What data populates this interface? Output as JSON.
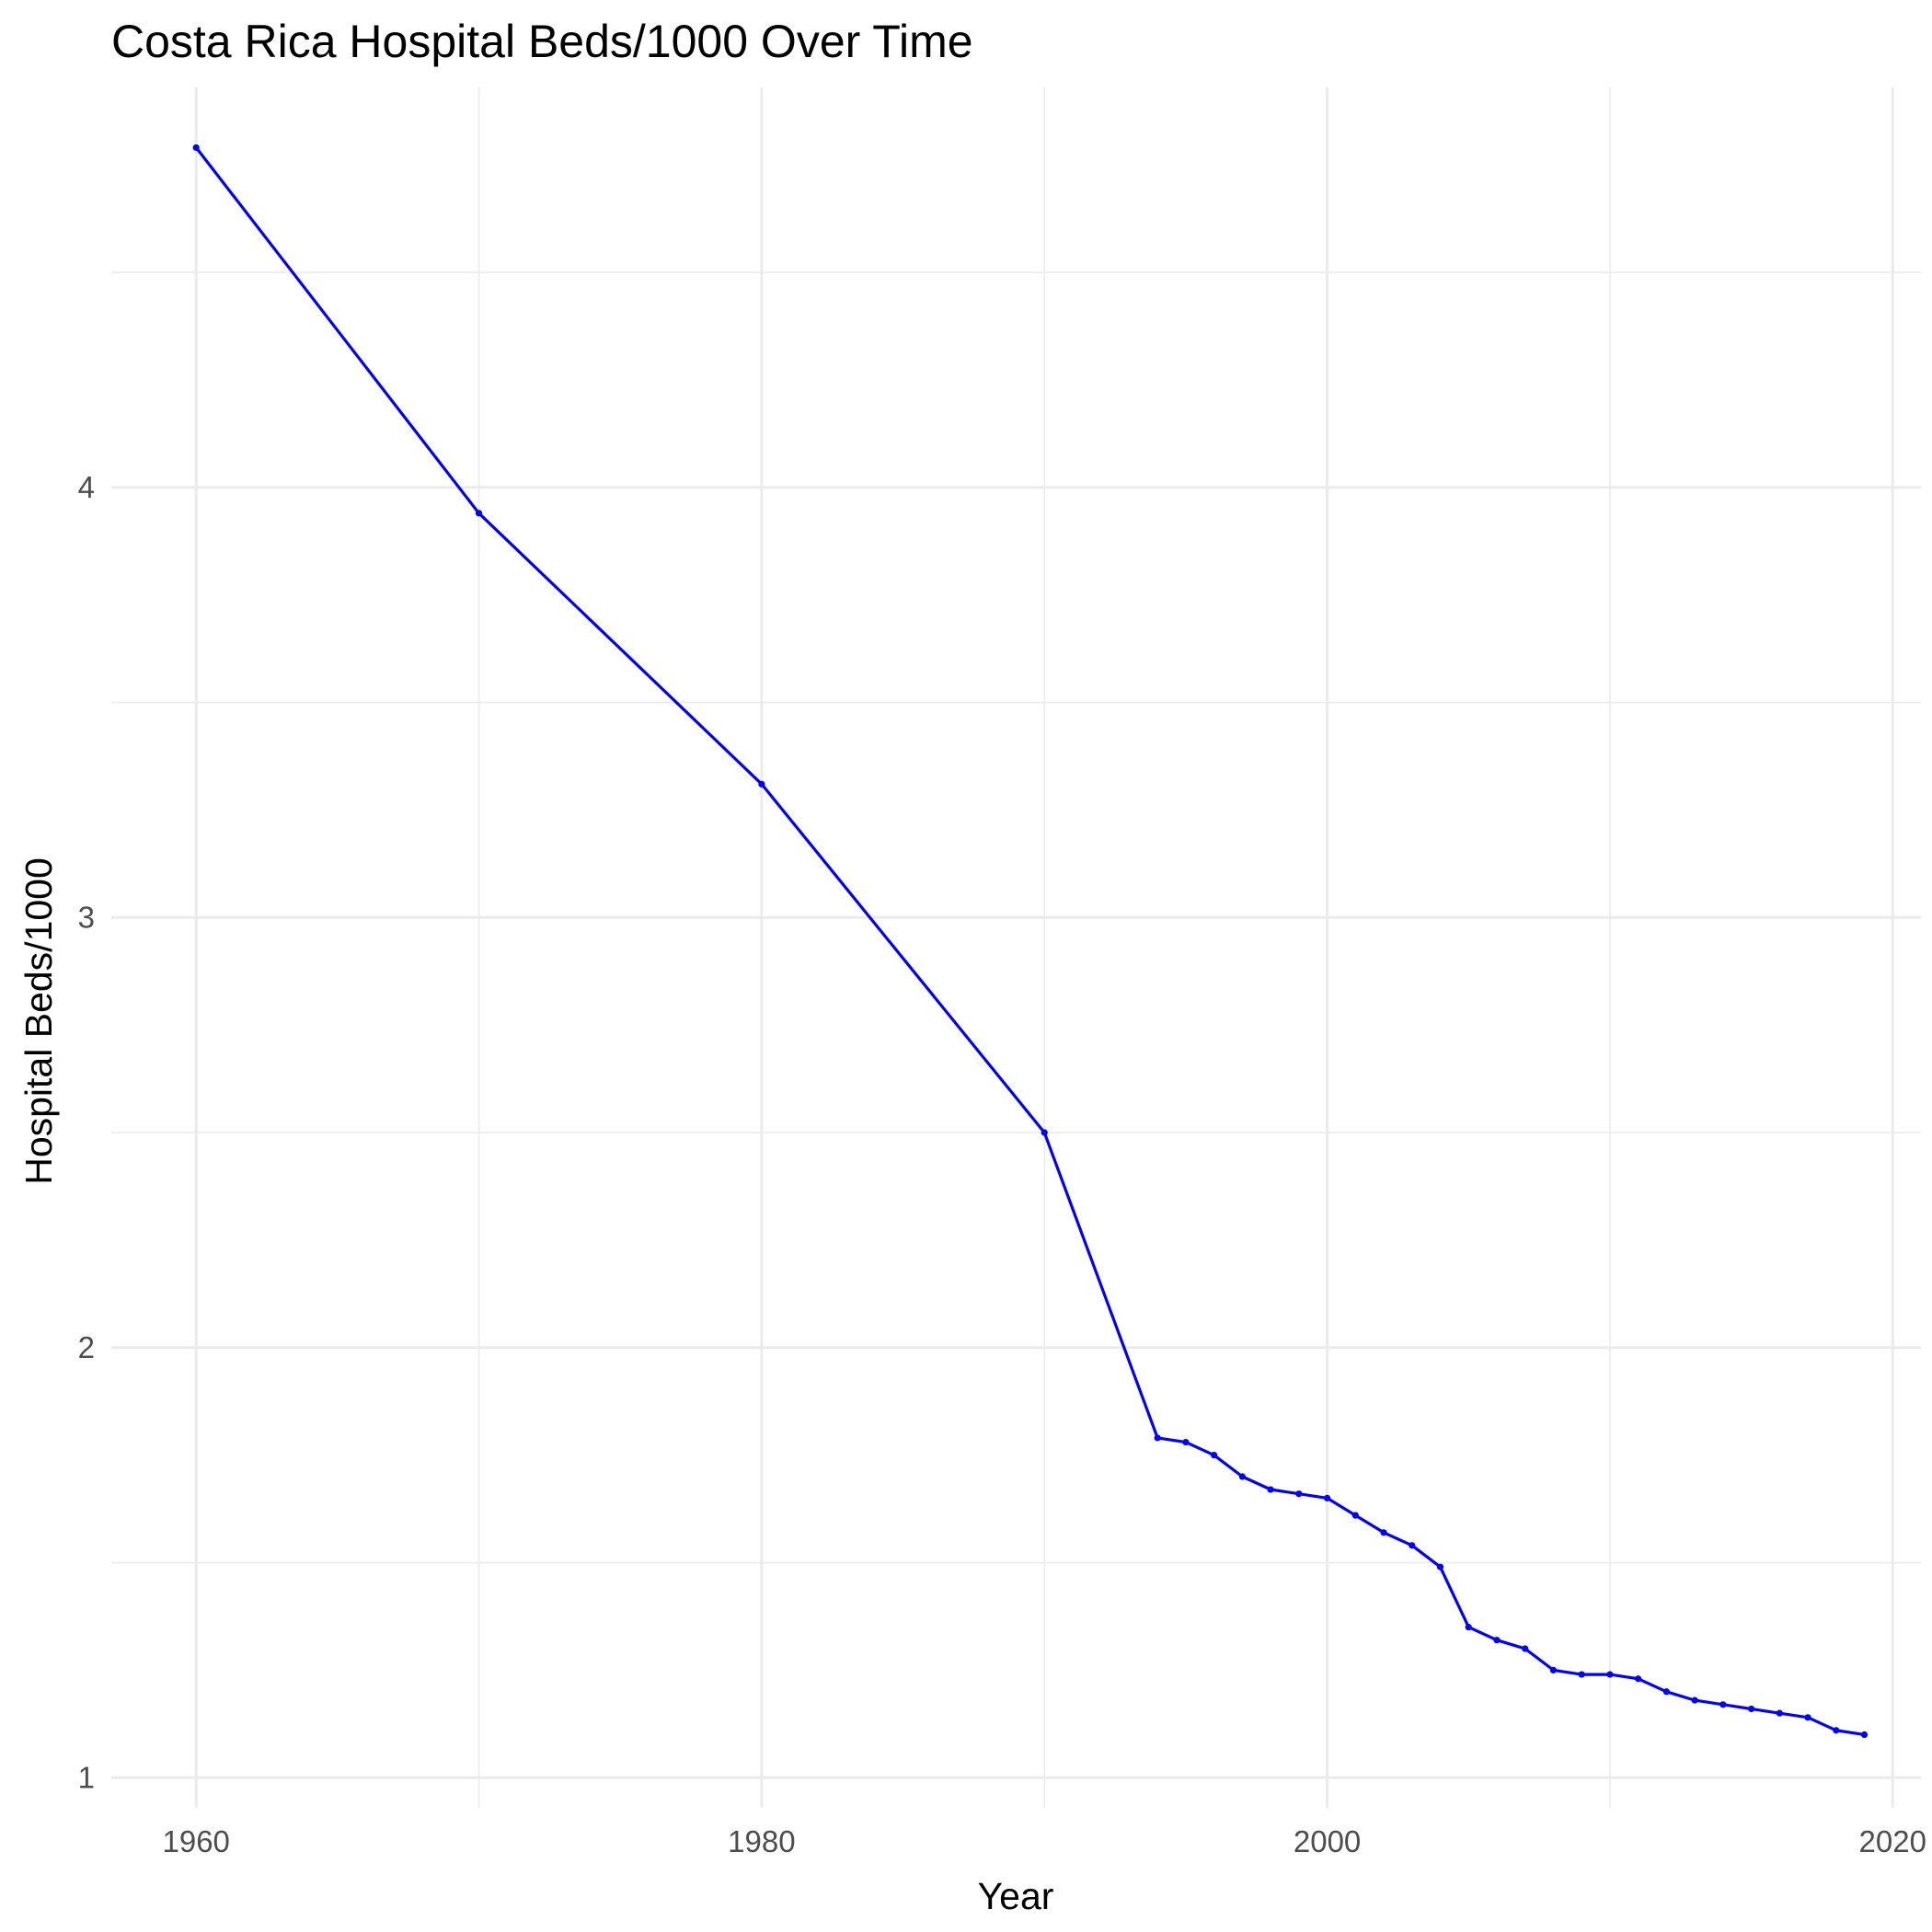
{
  "chart_data": {
    "type": "line",
    "title": "Costa Rica Hospital Beds/1000 Over Time",
    "xlabel": "Year",
    "ylabel": "Hospital Beds/1000",
    "xlim": [
      1957,
      2021
    ],
    "ylim": [
      0.93,
      4.93
    ],
    "x_ticks": [
      1960,
      1980,
      2000,
      2020
    ],
    "y_ticks": [
      1,
      2,
      3,
      4
    ],
    "grid": true,
    "legend": "none",
    "colors": {
      "line": "#0000ff",
      "grid": "#ebebeb"
    },
    "series": [
      {
        "x": [
          1960,
          1970,
          1980,
          1990,
          1994,
          1995,
          1996,
          1997,
          1998,
          1999,
          2000,
          2001,
          2002,
          2003,
          2004,
          2005,
          2006,
          2007,
          2008,
          2009,
          2010,
          2011,
          2012,
          2013,
          2014,
          2015,
          2016,
          2017,
          2018,
          2019
        ],
        "values": [
          4.79,
          3.94,
          3.31,
          2.5,
          1.79,
          1.78,
          1.75,
          1.7,
          1.67,
          1.66,
          1.65,
          1.61,
          1.57,
          1.54,
          1.49,
          1.35,
          1.32,
          1.3,
          1.25,
          1.24,
          1.24,
          1.23,
          1.2,
          1.18,
          1.17,
          1.16,
          1.15,
          1.14,
          1.11,
          1.1
        ]
      }
    ]
  }
}
